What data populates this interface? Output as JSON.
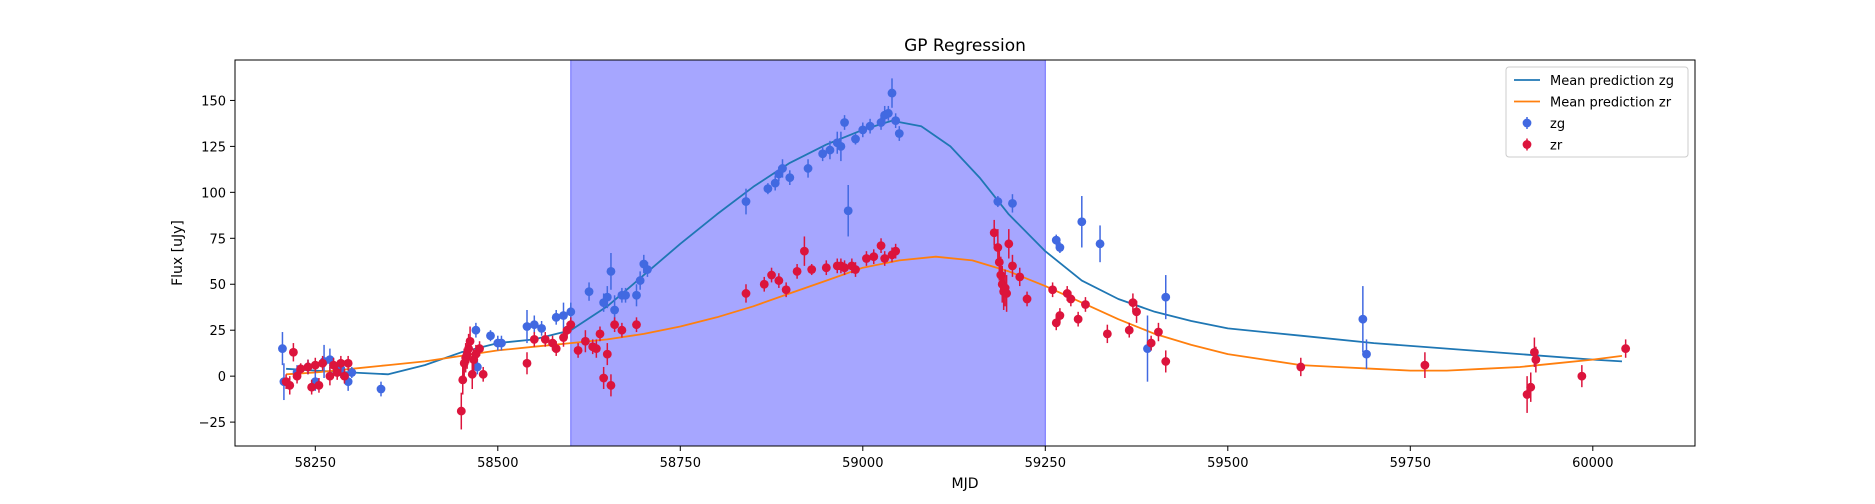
{
  "chart_data": {
    "type": "scatter",
    "title": "GP Regression",
    "xlabel": "MJD",
    "ylabel": "Flux [uJy]",
    "xlim": [
      58140,
      60140
    ],
    "ylim": [
      -38,
      172
    ],
    "x_ticks": [
      58250,
      58500,
      58750,
      59000,
      59250,
      59500,
      59750,
      60000
    ],
    "y_ticks": [
      -25,
      0,
      25,
      50,
      75,
      100,
      125,
      150
    ],
    "grid": false,
    "legend_position": "top-right",
    "shaded_region": {
      "x_start": 58600,
      "x_end": 59250,
      "color": "#a6a6ff"
    },
    "colors": {
      "mean_zg": "#1f77b4",
      "mean_zr": "#ff7f0e",
      "points_zg": "#4169e1",
      "points_zr": "#dc143c"
    },
    "series": [
      {
        "name": "Mean prediction zg",
        "kind": "line",
        "x": [
          58210,
          58250,
          58300,
          58350,
          58400,
          58450,
          58500,
          58550,
          58600,
          58650,
          58700,
          58750,
          58800,
          58850,
          58900,
          58950,
          59000,
          59040,
          59080,
          59120,
          59160,
          59200,
          59250,
          59300,
          59350,
          59400,
          59450,
          59500,
          59600,
          59700,
          59800,
          59900,
          60000,
          60040
        ],
        "y": [
          4,
          3,
          2,
          1,
          6,
          13,
          18,
          20,
          25,
          38,
          55,
          72,
          88,
          103,
          116,
          126,
          134,
          139,
          136,
          125,
          108,
          88,
          68,
          52,
          42,
          35,
          30,
          26,
          22,
          18,
          15,
          12,
          9,
          8
        ]
      },
      {
        "name": "Mean prediction zr",
        "kind": "line",
        "x": [
          58210,
          58250,
          58300,
          58350,
          58400,
          58450,
          58500,
          58550,
          58600,
          58650,
          58700,
          58750,
          58800,
          58850,
          58900,
          58950,
          59000,
          59050,
          59100,
          59150,
          59200,
          59250,
          59300,
          59350,
          59400,
          59450,
          59500,
          59550,
          59600,
          59650,
          59700,
          59750,
          59800,
          59850,
          59900,
          59950,
          60000,
          60040
        ],
        "y": [
          1,
          2,
          4,
          6,
          8,
          11,
          14,
          16,
          18,
          20,
          23,
          27,
          32,
          38,
          45,
          52,
          59,
          63,
          65,
          63,
          57,
          49,
          40,
          31,
          23,
          17,
          12,
          9,
          6,
          5,
          4,
          3,
          3,
          4,
          5,
          7,
          9,
          11
        ]
      },
      {
        "name": "zg",
        "kind": "errorbar",
        "points": [
          [
            58205,
            15,
            9
          ],
          [
            58207,
            -3,
            10
          ],
          [
            58225,
            2,
            4
          ],
          [
            58240,
            5,
            4
          ],
          [
            58250,
            -3,
            5
          ],
          [
            58262,
            8,
            9
          ],
          [
            58270,
            9,
            6
          ],
          [
            58285,
            4,
            5
          ],
          [
            58295,
            -3,
            5
          ],
          [
            58300,
            2,
            3
          ],
          [
            58340,
            -7,
            4
          ],
          [
            58470,
            25,
            4
          ],
          [
            58472,
            5,
            4
          ],
          [
            58490,
            22,
            3
          ],
          [
            58500,
            18,
            4
          ],
          [
            58505,
            18,
            4
          ],
          [
            58540,
            27,
            9
          ],
          [
            58550,
            28,
            5
          ],
          [
            58560,
            26,
            4
          ],
          [
            58580,
            32,
            4
          ],
          [
            58590,
            33,
            7
          ],
          [
            58600,
            35,
            5
          ],
          [
            58625,
            46,
            5
          ],
          [
            58645,
            40,
            5
          ],
          [
            58650,
            43,
            6
          ],
          [
            58655,
            57,
            10
          ],
          [
            58660,
            36,
            8
          ],
          [
            58670,
            44,
            4
          ],
          [
            58675,
            44,
            4
          ],
          [
            58690,
            44,
            6
          ],
          [
            58695,
            52,
            5
          ],
          [
            58700,
            61,
            5
          ],
          [
            58705,
            58,
            4
          ],
          [
            58840,
            95,
            7
          ],
          [
            58870,
            102,
            3
          ],
          [
            58880,
            105,
            4
          ],
          [
            58885,
            110,
            4
          ],
          [
            58890,
            113,
            5
          ],
          [
            58900,
            108,
            4
          ],
          [
            58925,
            113,
            5
          ],
          [
            58945,
            121,
            4
          ],
          [
            58955,
            123,
            5
          ],
          [
            58965,
            127,
            6
          ],
          [
            58970,
            125,
            8
          ],
          [
            58975,
            138,
            4
          ],
          [
            58980,
            90,
            14
          ],
          [
            58990,
            129,
            3
          ],
          [
            59000,
            134,
            4
          ],
          [
            59010,
            136,
            4
          ],
          [
            59025,
            138,
            4
          ],
          [
            59030,
            142,
            5
          ],
          [
            59035,
            143,
            4
          ],
          [
            59040,
            154,
            8
          ],
          [
            59045,
            139,
            4
          ],
          [
            59050,
            132,
            4
          ],
          [
            59185,
            95,
            3
          ],
          [
            59205,
            94,
            5
          ],
          [
            59265,
            74,
            3
          ],
          [
            59270,
            70,
            3
          ],
          [
            59300,
            84,
            14
          ],
          [
            59325,
            72,
            10
          ],
          [
            59390,
            15,
            18
          ],
          [
            59415,
            43,
            12
          ],
          [
            59685,
            31,
            18
          ],
          [
            59690,
            12,
            8
          ]
        ]
      },
      {
        "name": "zr",
        "kind": "errorbar",
        "points": [
          [
            58210,
            -3,
            4
          ],
          [
            58215,
            -5,
            5
          ],
          [
            58220,
            13,
            5
          ],
          [
            58225,
            0,
            4
          ],
          [
            58230,
            4,
            3
          ],
          [
            58240,
            5,
            4
          ],
          [
            58245,
            -6,
            4
          ],
          [
            58250,
            6,
            4
          ],
          [
            58255,
            -5,
            4
          ],
          [
            58260,
            7,
            4
          ],
          [
            58270,
            0,
            5
          ],
          [
            58275,
            6,
            4
          ],
          [
            58280,
            2,
            4
          ],
          [
            58285,
            7,
            4
          ],
          [
            58290,
            0,
            4
          ],
          [
            58295,
            7,
            4
          ],
          [
            58450,
            -19,
            10
          ],
          [
            58452,
            -2,
            8
          ],
          [
            58454,
            7,
            8
          ],
          [
            58456,
            10,
            8
          ],
          [
            58458,
            12,
            8
          ],
          [
            58460,
            15,
            8
          ],
          [
            58462,
            19,
            8
          ],
          [
            58465,
            1,
            8
          ],
          [
            58467,
            9,
            6
          ],
          [
            58470,
            12,
            5
          ],
          [
            58475,
            15,
            4
          ],
          [
            58480,
            1,
            4
          ],
          [
            58540,
            7,
            6
          ],
          [
            58550,
            20,
            4
          ],
          [
            58565,
            20,
            4
          ],
          [
            58575,
            18,
            4
          ],
          [
            58580,
            15,
            4
          ],
          [
            58590,
            21,
            5
          ],
          [
            58595,
            25,
            4
          ],
          [
            58600,
            28,
            4
          ],
          [
            58610,
            14,
            4
          ],
          [
            58620,
            19,
            6
          ],
          [
            58630,
            16,
            4
          ],
          [
            58635,
            15,
            5
          ],
          [
            58640,
            23,
            4
          ],
          [
            58645,
            -1,
            6
          ],
          [
            58650,
            12,
            6
          ],
          [
            58655,
            -5,
            6
          ],
          [
            58660,
            28,
            4
          ],
          [
            58670,
            25,
            4
          ],
          [
            58690,
            28,
            4
          ],
          [
            58840,
            45,
            5
          ],
          [
            58865,
            50,
            4
          ],
          [
            58875,
            55,
            4
          ],
          [
            58885,
            52,
            4
          ],
          [
            58895,
            47,
            4
          ],
          [
            58910,
            57,
            4
          ],
          [
            58920,
            68,
            8
          ],
          [
            58930,
            58,
            3
          ],
          [
            58950,
            59,
            4
          ],
          [
            58965,
            60,
            4
          ],
          [
            58970,
            60,
            4
          ],
          [
            58975,
            59,
            4
          ],
          [
            58985,
            60,
            4
          ],
          [
            58990,
            58,
            4
          ],
          [
            59005,
            64,
            4
          ],
          [
            59015,
            65,
            4
          ],
          [
            59025,
            71,
            4
          ],
          [
            59030,
            64,
            4
          ],
          [
            59040,
            66,
            4
          ],
          [
            59045,
            68,
            4
          ],
          [
            59180,
            78,
            7
          ],
          [
            59185,
            70,
            10
          ],
          [
            59187,
            62,
            10
          ],
          [
            59189,
            55,
            10
          ],
          [
            59191,
            50,
            10
          ],
          [
            59193,
            46,
            10
          ],
          [
            59195,
            48,
            10
          ],
          [
            59197,
            45,
            10
          ],
          [
            59200,
            72,
            8
          ],
          [
            59205,
            60,
            6
          ],
          [
            59215,
            54,
            5
          ],
          [
            59225,
            42,
            4
          ],
          [
            59260,
            47,
            4
          ],
          [
            59265,
            29,
            4
          ],
          [
            59270,
            33,
            4
          ],
          [
            59280,
            45,
            4
          ],
          [
            59285,
            42,
            4
          ],
          [
            59295,
            31,
            4
          ],
          [
            59305,
            39,
            4
          ],
          [
            59335,
            23,
            5
          ],
          [
            59365,
            25,
            4
          ],
          [
            59370,
            40,
            5
          ],
          [
            59375,
            35,
            6
          ],
          [
            59395,
            18,
            4
          ],
          [
            59405,
            24,
            5
          ],
          [
            59415,
            8,
            6
          ],
          [
            59600,
            5,
            5
          ],
          [
            59770,
            6,
            7
          ],
          [
            59910,
            -10,
            10
          ],
          [
            59915,
            -6,
            8
          ],
          [
            59920,
            13,
            8
          ],
          [
            59922,
            9,
            7
          ],
          [
            59985,
            0,
            6
          ],
          [
            60045,
            15,
            5
          ]
        ]
      }
    ]
  }
}
